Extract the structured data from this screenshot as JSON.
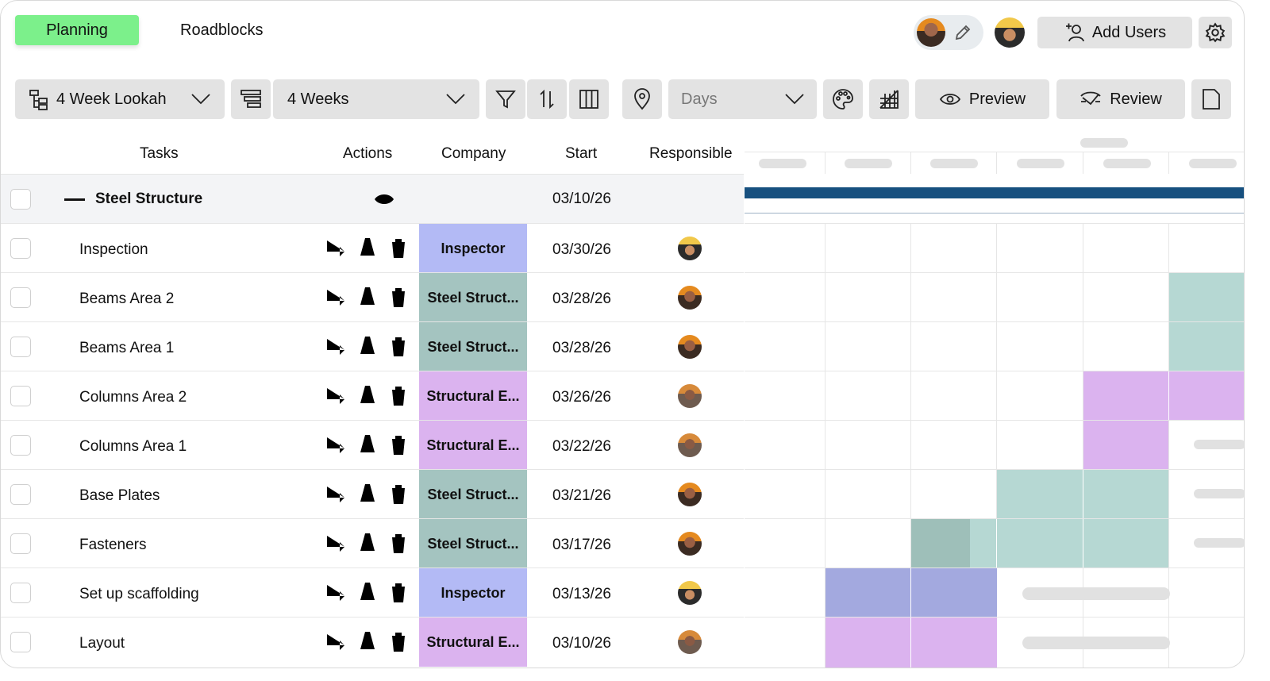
{
  "tabs": {
    "planning": "Planning",
    "roadblocks": "Roadblocks"
  },
  "header": {
    "add_users": "Add Users"
  },
  "toolbar": {
    "view": "4 Week Lookah",
    "range": "4 Weeks",
    "scale": "Days",
    "preview": "Preview",
    "review": "Review"
  },
  "columns": {
    "tasks": "Tasks",
    "actions": "Actions",
    "company": "Company",
    "start": "Start",
    "responsible": "Responsible"
  },
  "group": {
    "title": "Steel Structure",
    "start": "03/10/26"
  },
  "rows": [
    {
      "task": "Inspection",
      "company": "Inspector",
      "start": "03/30/26"
    },
    {
      "task": "Beams Area 2",
      "company": "Steel Struct...",
      "start": "03/28/26"
    },
    {
      "task": "Beams Area 1",
      "company": "Steel Struct...",
      "start": "03/28/26"
    },
    {
      "task": "Columns Area 2",
      "company": "Structural E...",
      "start": "03/26/26"
    },
    {
      "task": "Columns Area 1",
      "company": "Structural E...",
      "start": "03/22/26"
    },
    {
      "task": "Base Plates",
      "company": "Steel Struct...",
      "start": "03/21/26"
    },
    {
      "task": "Fasteners",
      "company": "Steel Struct...",
      "start": "03/17/26"
    },
    {
      "task": "Set up scaffolding",
      "company": "Inspector",
      "start": "03/13/26"
    },
    {
      "task": "Layout",
      "company": "Structural E...",
      "start": "03/10/26"
    }
  ],
  "colors": {
    "planning_tab": "#7cf08b",
    "inspector": "#b3baf5",
    "steel": "#a4c4c0",
    "structural": "#dbb3ef",
    "gantt_group": "#17507f",
    "gantt_steel": "#b6d8d3",
    "gantt_structural": "#dbb3ef",
    "gantt_inspector": "#a3a9df"
  },
  "icons": [
    "gear-icon",
    "pencil-icon",
    "add-user-icon",
    "hierarchy-icon",
    "list-icon",
    "chevron-down-icon",
    "filter-icon",
    "sort-icon",
    "columns-icon",
    "location-pin-icon",
    "palette-icon",
    "grid-icon",
    "eye-icon",
    "review-icon",
    "document-icon",
    "plus-icon",
    "eye-off-icon",
    "arrow-right-icon",
    "cone-icon",
    "trash-icon"
  ]
}
